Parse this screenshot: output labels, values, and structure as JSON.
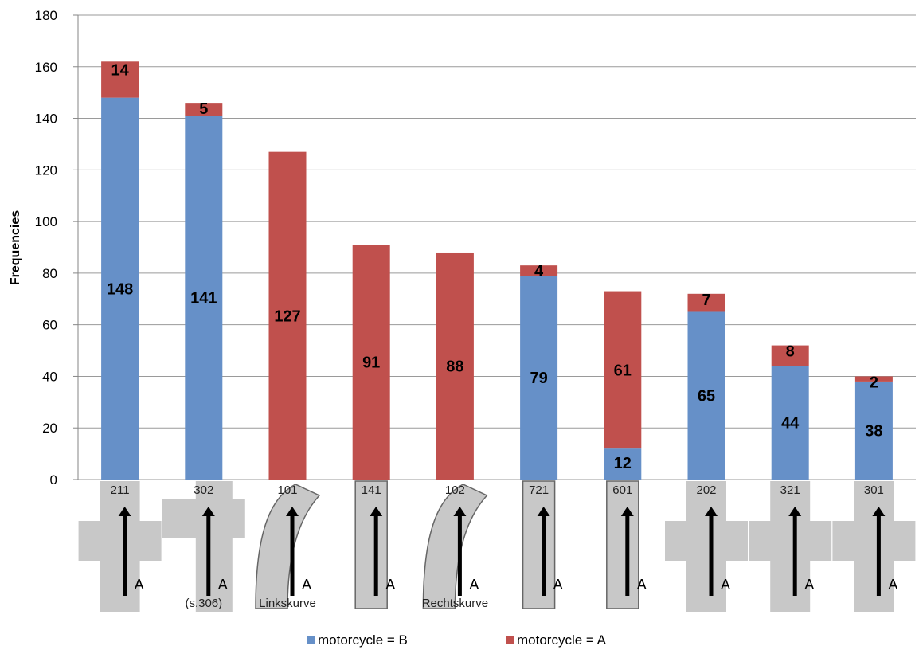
{
  "chart_data": {
    "type": "bar",
    "stacked": true,
    "ylabel": "Frequencies",
    "ylim": [
      0,
      180
    ],
    "yticks": [
      0,
      20,
      40,
      60,
      80,
      100,
      120,
      140,
      160,
      180
    ],
    "grid": true,
    "legend_position": "bottom",
    "categories": [
      "211",
      "302",
      "101",
      "141",
      "102",
      "721",
      "601",
      "202",
      "321",
      "301"
    ],
    "category_captions": [
      "",
      "(s.306)",
      "Linkskurve",
      "",
      "Rechtskurve",
      "",
      "",
      "",
      "",
      ""
    ],
    "series": [
      {
        "name": "motorcycle = B",
        "color": "#6690c8",
        "values": [
          148,
          141,
          0,
          0,
          0,
          79,
          12,
          65,
          44,
          38
        ]
      },
      {
        "name": "motorcycle = A",
        "color": "#c0504d",
        "values": [
          14,
          5,
          127,
          91,
          88,
          4,
          61,
          7,
          8,
          2
        ]
      }
    ]
  }
}
